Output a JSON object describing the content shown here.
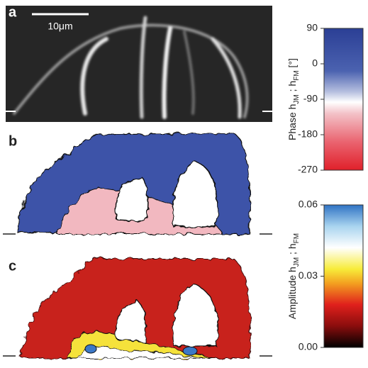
{
  "panels": [
    {
      "label": "a",
      "scale_bar": "10μm"
    },
    {
      "label": "b"
    },
    {
      "label": "c"
    }
  ],
  "colorbars": [
    {
      "label_parts": [
        "Phase h",
        "JM",
        " ; h",
        "FM",
        " [°]"
      ],
      "lim": [
        -270,
        90
      ],
      "ticks": [
        90,
        0,
        -90,
        -180,
        -270
      ]
    },
    {
      "label_parts": [
        "Amplitude h",
        "JM",
        " ; h",
        "FM"
      ],
      "lim": [
        0,
        0.06
      ],
      "ticks": [
        0.06,
        0.03,
        {
          "value": 0,
          "label": "0.00"
        }
      ]
    }
  ]
}
